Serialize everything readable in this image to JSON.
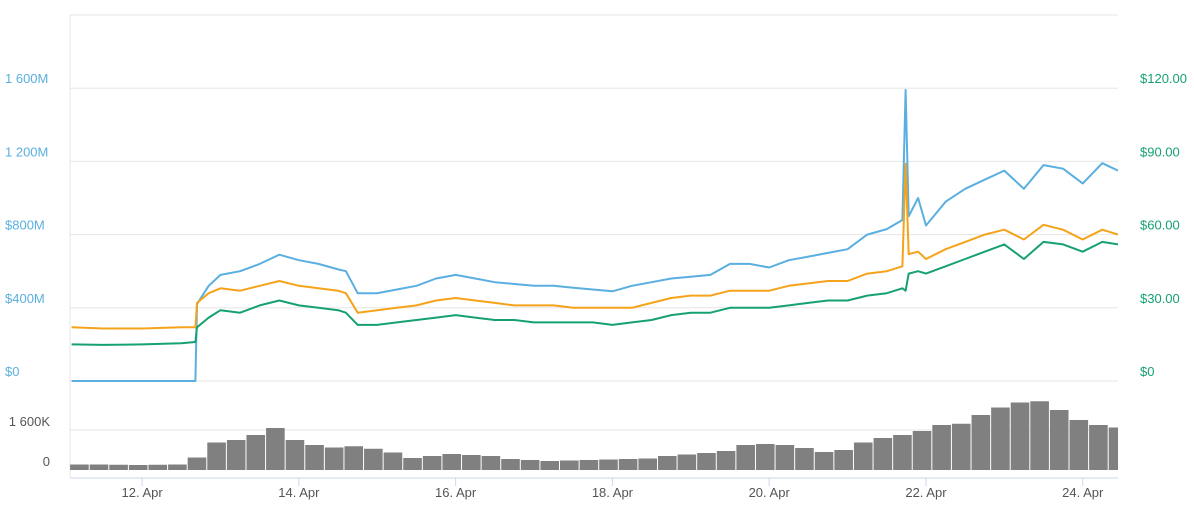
{
  "chart_data": [
    {
      "type": "line",
      "x": [
        11.1,
        11.5,
        12.0,
        12.5,
        12.68,
        12.7,
        12.85,
        13.0,
        13.25,
        13.5,
        13.75,
        14.0,
        14.25,
        14.5,
        14.6,
        14.75,
        15.0,
        15.25,
        15.5,
        15.75,
        16.0,
        16.25,
        16.5,
        16.75,
        17.0,
        17.25,
        17.5,
        17.75,
        18.0,
        18.25,
        18.5,
        18.75,
        19.0,
        19.25,
        19.5,
        19.75,
        20.0,
        20.25,
        20.5,
        20.75,
        21.0,
        21.25,
        21.5,
        21.7,
        21.74,
        21.78,
        21.9,
        22.0,
        22.25,
        22.5,
        22.75,
        23.0,
        23.25,
        23.5,
        23.75,
        24.0,
        24.25,
        24.45
      ],
      "series": [
        {
          "color": "#5aafe0",
          "axis": "y",
          "values": [
            0,
            0,
            0,
            0,
            0,
            420,
            520,
            580,
            600,
            640,
            690,
            660,
            640,
            610,
            600,
            480,
            480,
            500,
            520,
            560,
            580,
            560,
            540,
            530,
            520,
            520,
            510,
            500,
            490,
            520,
            540,
            560,
            570,
            580,
            640,
            640,
            620,
            660,
            680,
            700,
            720,
            800,
            830,
            880,
            1590,
            900,
            1000,
            850,
            980,
            1050,
            1100,
            1150,
            1050,
            1180,
            1160,
            1080,
            1190,
            1150
          ]
        },
        {
          "color": "#f5a31a",
          "axis": "y2",
          "values": [
            22,
            21.5,
            21.5,
            22,
            22,
            32,
            36,
            38,
            37,
            39,
            41,
            39,
            38,
            37,
            36,
            28,
            29,
            30,
            31,
            33,
            34,
            33,
            32,
            31,
            31,
            31,
            30,
            30,
            30,
            30,
            32,
            34,
            35,
            35,
            37,
            37,
            37,
            39,
            40,
            41,
            41,
            44,
            45,
            47,
            89,
            52,
            53,
            50,
            54,
            57,
            60,
            62,
            58,
            64,
            62,
            58,
            62,
            60
          ]
        },
        {
          "color": "#16a172",
          "axis": "y2",
          "values": [
            15,
            14.8,
            15,
            15.5,
            16,
            22,
            26,
            29,
            28,
            31,
            33,
            31,
            30,
            29,
            28,
            23,
            23,
            24,
            25,
            26,
            27,
            26,
            25,
            25,
            24,
            24,
            24,
            24,
            23,
            24,
            25,
            27,
            28,
            28,
            30,
            30,
            30,
            31,
            32,
            33,
            33,
            35,
            36,
            38,
            37,
            44,
            45,
            44,
            47,
            50,
            53,
            56,
            50,
            57,
            56,
            53,
            57,
            56
          ]
        }
      ],
      "xlim": [
        11.08,
        24.45
      ],
      "ylim": [
        0,
        2000
      ],
      "yticks": [
        {
          "value": 0,
          "label": "$0"
        },
        {
          "value": 400,
          "label": "$400M"
        },
        {
          "value": 800,
          "label": "$800M"
        },
        {
          "value": 1200,
          "label": "1 200M"
        },
        {
          "value": 1600,
          "label": "1 600M"
        }
      ],
      "y2lim": [
        0,
        150
      ],
      "y2ticks": [
        {
          "value": 0,
          "label": "$0"
        },
        {
          "value": 30,
          "label": "$30.00"
        },
        {
          "value": 60,
          "label": "$60.00"
        },
        {
          "value": 90,
          "label": "$90.00"
        },
        {
          "value": 120,
          "label": "$120.00"
        }
      ],
      "grid": true
    },
    {
      "type": "bar",
      "x": [
        11.2,
        11.45,
        11.7,
        11.95,
        12.2,
        12.45,
        12.7,
        12.95,
        13.2,
        13.45,
        13.7,
        13.95,
        14.2,
        14.45,
        14.7,
        14.95,
        15.2,
        15.45,
        15.7,
        15.95,
        16.2,
        16.45,
        16.7,
        16.95,
        17.2,
        17.45,
        17.7,
        17.95,
        18.2,
        18.45,
        18.7,
        18.95,
        19.2,
        19.45,
        19.7,
        19.95,
        20.2,
        20.45,
        20.7,
        20.95,
        21.2,
        21.45,
        21.7,
        21.95,
        22.2,
        22.45,
        22.7,
        22.95,
        23.2,
        23.45,
        23.7,
        23.95,
        24.2,
        24.45
      ],
      "values": [
        220,
        220,
        210,
        200,
        210,
        220,
        500,
        1100,
        1200,
        1400,
        1680,
        1200,
        1000,
        900,
        950,
        850,
        700,
        480,
        560,
        640,
        600,
        560,
        440,
        400,
        360,
        380,
        400,
        420,
        440,
        460,
        560,
        620,
        680,
        760,
        1000,
        1040,
        1000,
        880,
        720,
        800,
        1100,
        1280,
        1400,
        1560,
        1800,
        1850,
        2200,
        2500,
        2700,
        2750,
        2400,
        2000,
        1800,
        1700
      ],
      "color": "#808080",
      "xlim": [
        11.08,
        24.45
      ],
      "ylim": [
        0,
        3100
      ],
      "yticks": [
        0,
        {
          "value": 1600,
          "label": "1 600K"
        }
      ],
      "xticks": [
        {
          "value": 12,
          "label": "12. Apr"
        },
        {
          "value": 14,
          "label": "14. Apr"
        },
        {
          "value": 16,
          "label": "16. Apr"
        },
        {
          "value": 18,
          "label": "18. Apr"
        },
        {
          "value": 20,
          "label": "20. Apr"
        },
        {
          "value": 22,
          "label": "22. Apr"
        },
        {
          "value": 24,
          "label": "24. Apr"
        }
      ],
      "grid": true
    }
  ]
}
